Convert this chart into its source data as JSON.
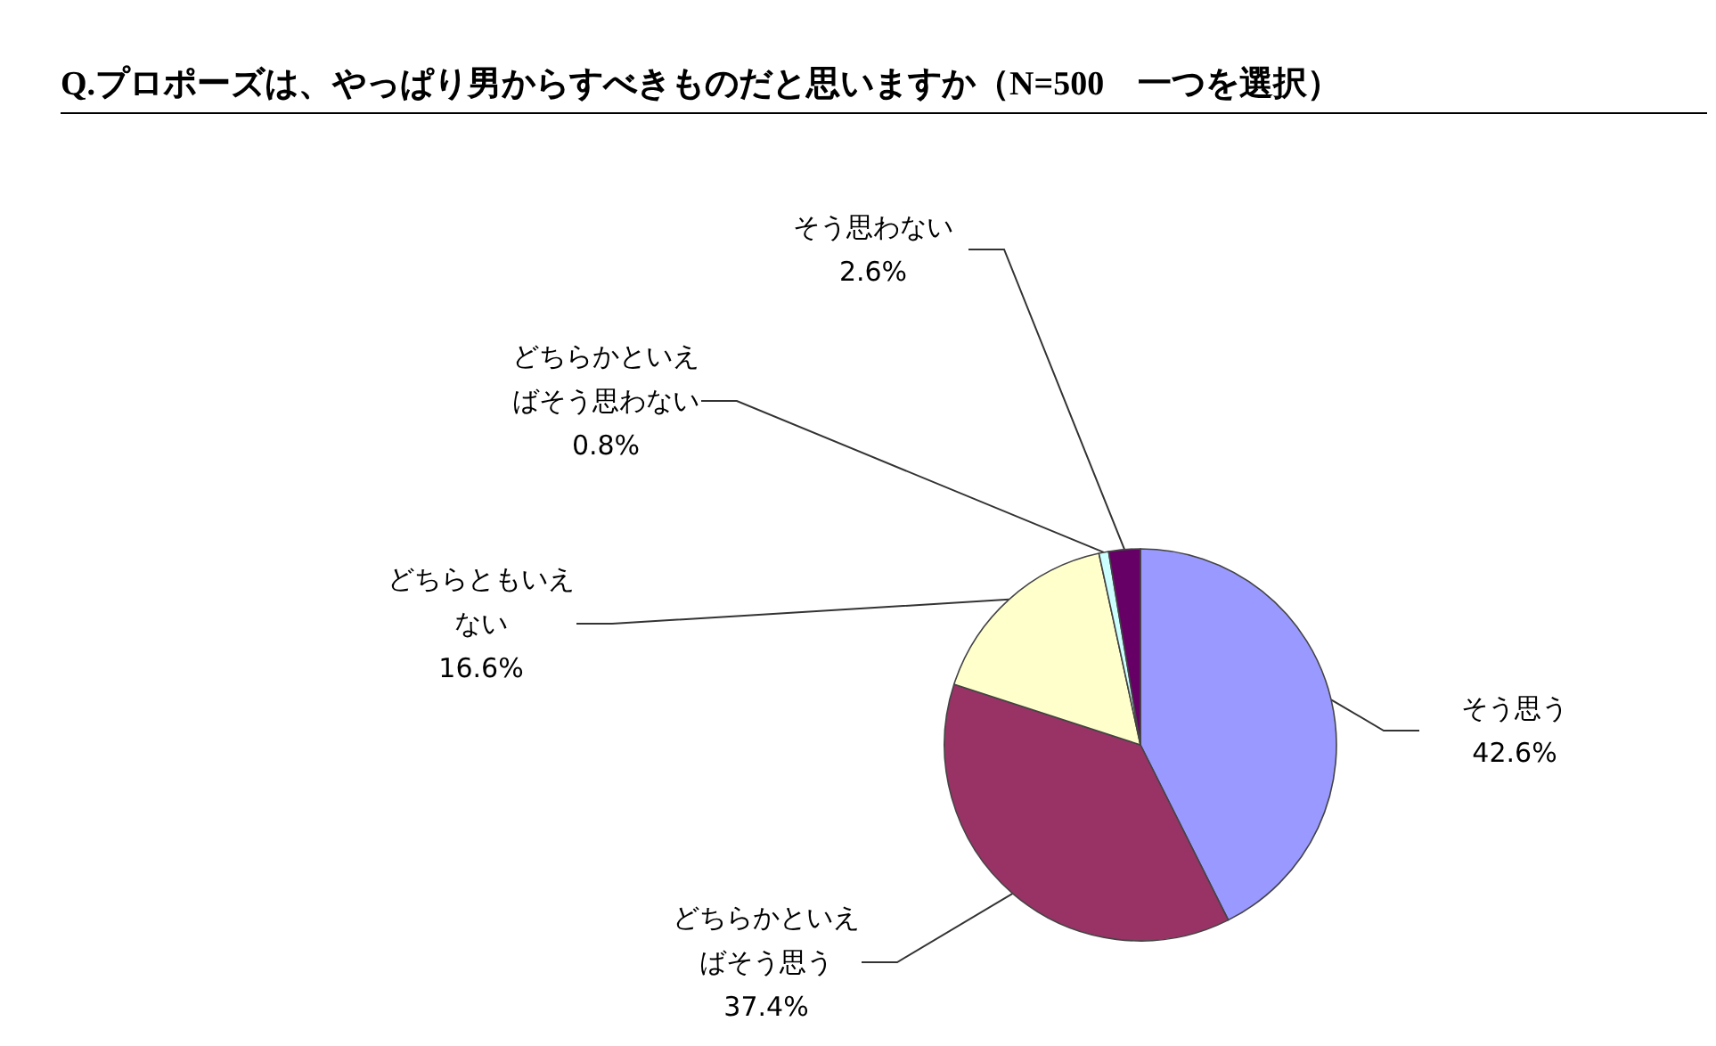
{
  "chart_data": {
    "type": "pie",
    "title": "Q.プロポーズは、やっぱり男からすべきものだと思いますか（N=500　一つを選択）",
    "categories": [
      "そう思う",
      "どちらかといえばそう思う",
      "どちらともいえない",
      "どちらかといえばそう思わない",
      "そう思わない"
    ],
    "values": [
      42.6,
      37.4,
      16.6,
      0.8,
      2.6
    ],
    "value_labels": [
      "42.6%",
      "37.4%",
      "16.6%",
      "0.8%",
      "2.6%"
    ],
    "colors": [
      "#9999ff",
      "#993366",
      "#ffffcc",
      "#ccffff",
      "#660066"
    ]
  }
}
